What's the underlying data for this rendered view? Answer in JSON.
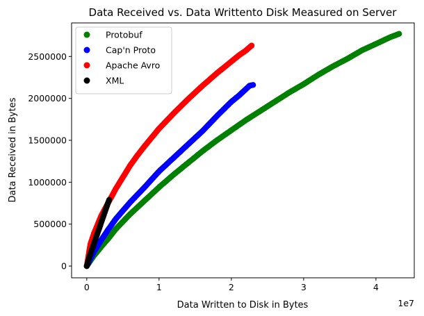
{
  "chart_data": {
    "type": "scatter",
    "title": "Data Received vs. Data Writtento Disk Measured on Server",
    "xlabel": "Data Written to Disk in Bytes",
    "ylabel": "Data Received in Bytes",
    "x_offset_label": "1e7",
    "xlim": [
      -2100000,
      45300000
    ],
    "ylim": [
      -140000,
      2900000
    ],
    "x_ticks": [
      0,
      10000000,
      20000000,
      30000000,
      40000000
    ],
    "x_tick_labels": [
      "0",
      "1",
      "2",
      "3",
      "4"
    ],
    "y_ticks": [
      0,
      500000,
      1000000,
      1500000,
      2000000,
      2500000
    ],
    "y_tick_labels": [
      "0",
      "500000",
      "1000000",
      "1500000",
      "2000000",
      "2500000"
    ],
    "grid": false,
    "legend_position": "upper-left",
    "series": [
      {
        "name": "Protobuf",
        "color": "#008000",
        "x": [
          0,
          1000000,
          2000000,
          3000000,
          4000000,
          5000000,
          6000000,
          8000000,
          10000000,
          12000000,
          14000000,
          16000000,
          18000000,
          20000000,
          22000000,
          24000000,
          26000000,
          28000000,
          30000000,
          32000000,
          34000000,
          36000000,
          38000000,
          40000000,
          42000000,
          43200000
        ],
        "y": [
          0,
          125000,
          230000,
          330000,
          440000,
          530000,
          620000,
          780000,
          940000,
          1090000,
          1230000,
          1370000,
          1500000,
          1620000,
          1740000,
          1850000,
          1960000,
          2070000,
          2170000,
          2280000,
          2380000,
          2470000,
          2570000,
          2650000,
          2730000,
          2770000
        ]
      },
      {
        "name": "Cap'n Proto",
        "color": "#0000ff",
        "x": [
          0,
          1000000,
          2000000,
          3000000,
          4000000,
          5000000,
          6000000,
          7000000,
          8000000,
          10000000,
          12000000,
          14000000,
          16000000,
          18000000,
          20000000,
          21000000,
          22000000,
          22500000,
          23000000
        ],
        "y": [
          0,
          170000,
          310000,
          440000,
          560000,
          660000,
          760000,
          850000,
          940000,
          1130000,
          1290000,
          1450000,
          1610000,
          1790000,
          1960000,
          2030000,
          2110000,
          2150000,
          2160000
        ]
      },
      {
        "name": "Apache Avro",
        "color": "#ff0000",
        "x": [
          0,
          500000,
          1000000,
          2000000,
          3000000,
          4000000,
          5000000,
          6000000,
          7000000,
          8000000,
          10000000,
          12000000,
          14000000,
          16000000,
          18000000,
          20000000,
          21000000,
          22000000,
          22800000
        ],
        "y": [
          0,
          260000,
          390000,
          600000,
          760000,
          920000,
          1060000,
          1200000,
          1320000,
          1430000,
          1640000,
          1820000,
          1990000,
          2150000,
          2300000,
          2440000,
          2510000,
          2570000,
          2630000
        ]
      },
      {
        "name": "XML",
        "color": "#000000",
        "x": [
          0,
          400000,
          800000,
          1200000,
          1600000,
          2000000,
          2400000,
          2800000,
          3100000
        ],
        "y": [
          0,
          120000,
          220000,
          320000,
          420000,
          520000,
          620000,
          720000,
          790000
        ]
      }
    ]
  }
}
